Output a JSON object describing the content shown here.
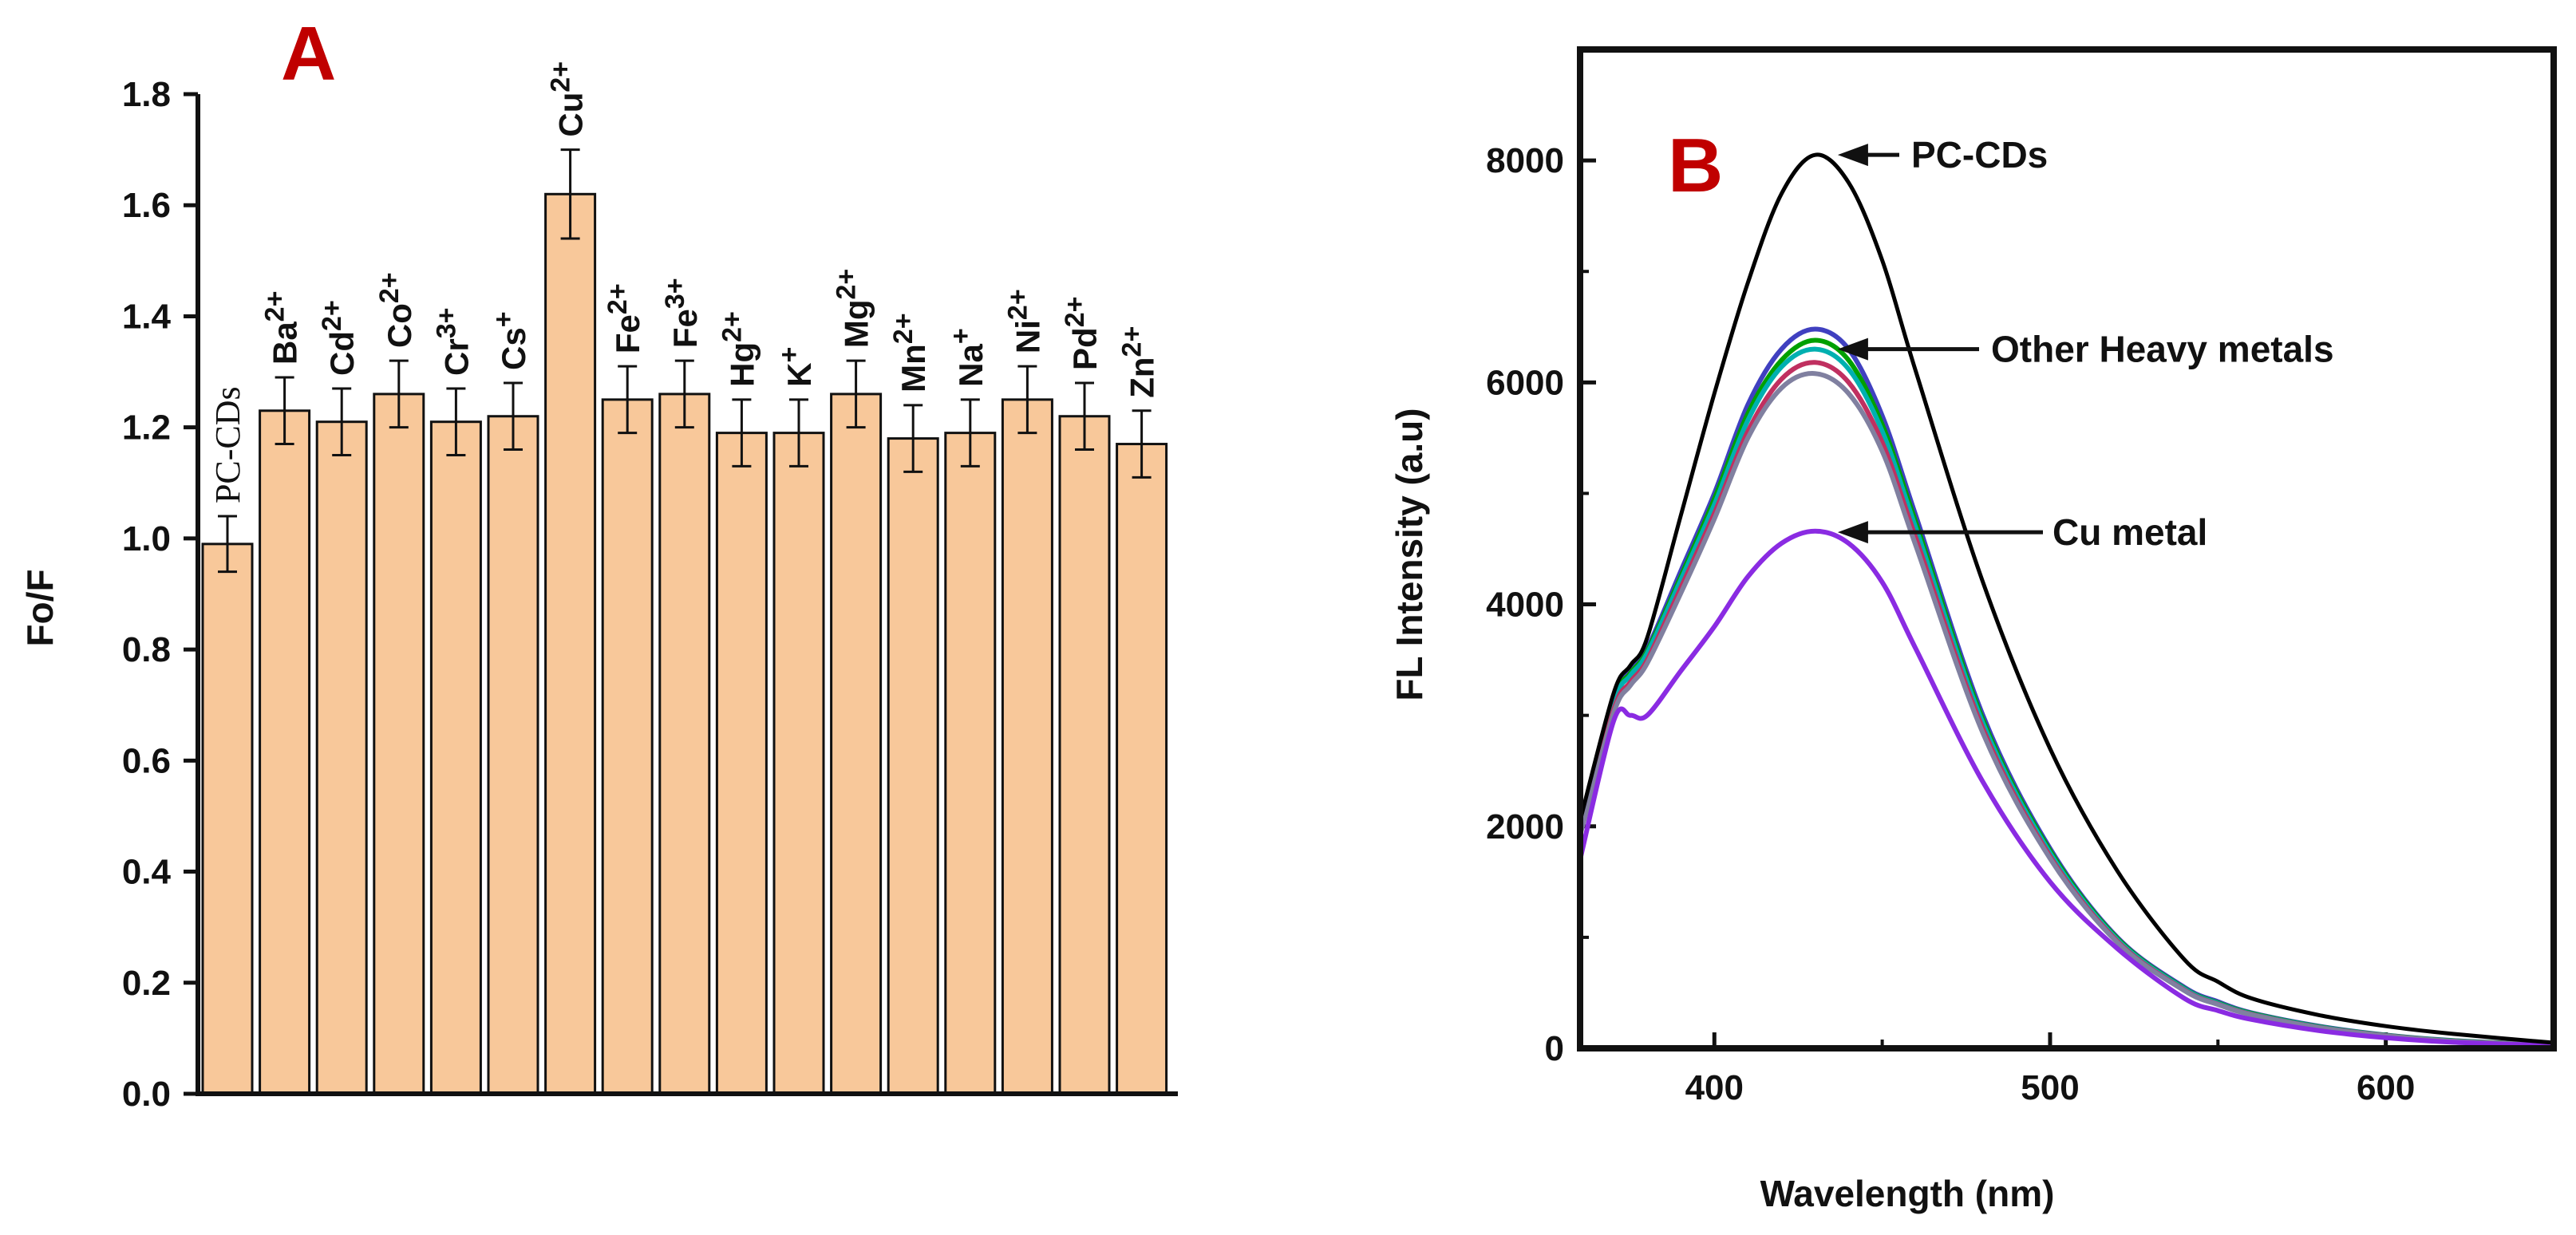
{
  "chart_data": [
    {
      "type": "bar",
      "panel_label": "A",
      "ylabel": "Fo/F",
      "xlabel": "",
      "ylim": [
        0,
        1.8
      ],
      "yticks": [
        "0.0",
        "0.2",
        "0.4",
        "0.6",
        "0.8",
        "1.0",
        "1.2",
        "1.4",
        "1.6",
        "1.8"
      ],
      "categories": [
        {
          "base": "PC-CDs",
          "sup": ""
        },
        {
          "base": "Ba",
          "sup": "2+"
        },
        {
          "base": "Cd",
          "sup": "2+"
        },
        {
          "base": "Co",
          "sup": "2+"
        },
        {
          "base": "Cr",
          "sup": "3+"
        },
        {
          "base": "Cs",
          "sup": "+"
        },
        {
          "base": "Cu",
          "sup": "2+"
        },
        {
          "base": "Fe",
          "sup": "2+"
        },
        {
          "base": "Fe",
          "sup": "3+"
        },
        {
          "base": "Hg",
          "sup": "2+"
        },
        {
          "base": "K",
          "sup": "+"
        },
        {
          "base": "Mg",
          "sup": "2+"
        },
        {
          "base": "Mn",
          "sup": "2+"
        },
        {
          "base": "Na",
          "sup": "+"
        },
        {
          "base": "Ni",
          "sup": "2+"
        },
        {
          "base": "Pd",
          "sup": "2+"
        },
        {
          "base": "Zn",
          "sup": "2+"
        }
      ],
      "values": [
        0.99,
        1.23,
        1.21,
        1.26,
        1.21,
        1.22,
        1.62,
        1.25,
        1.26,
        1.19,
        1.19,
        1.26,
        1.18,
        1.19,
        1.25,
        1.22,
        1.17
      ],
      "errors": [
        0.05,
        0.06,
        0.06,
        0.06,
        0.06,
        0.06,
        0.08,
        0.06,
        0.06,
        0.06,
        0.06,
        0.06,
        0.06,
        0.06,
        0.06,
        0.06,
        0.06
      ],
      "bar_color": "#f8c89a"
    },
    {
      "type": "line",
      "panel_label": "B",
      "xlabel": "Wavelength (nm)",
      "ylabel": "FL Intensity (a.u)",
      "xlim": [
        360,
        650
      ],
      "ylim": [
        0,
        9000
      ],
      "xticks": [
        400,
        500,
        600
      ],
      "yticks": [
        0,
        2000,
        4000,
        6000,
        8000
      ],
      "annotations": [
        {
          "text": "PC-CDs",
          "x": 432,
          "y": 8050
        },
        {
          "text": "Other Heavy metals",
          "x": 432,
          "y": 6300
        },
        {
          "text": "Cu metal",
          "x": 432,
          "y": 4650
        }
      ],
      "series": [
        {
          "name": "PC-CDs",
          "color": "#000000",
          "x": [
            360,
            370,
            375,
            380,
            390,
            400,
            410,
            420,
            430,
            440,
            450,
            460,
            480,
            500,
            520,
            540,
            550,
            560,
            580,
            600,
            620,
            650
          ],
          "y": [
            2050,
            3200,
            3450,
            3700,
            4800,
            5900,
            6900,
            7700,
            8050,
            7800,
            7100,
            6100,
            4200,
            2700,
            1600,
            800,
            600,
            450,
            300,
            200,
            130,
            50
          ]
        },
        {
          "name": "Other Heavy metals 1",
          "color": "#4040c0",
          "x": [
            360,
            370,
            375,
            380,
            390,
            400,
            410,
            420,
            430,
            440,
            450,
            460,
            480,
            500,
            520,
            540,
            550,
            560,
            580,
            600,
            620,
            650
          ],
          "y": [
            1950,
            3150,
            3400,
            3600,
            4300,
            5000,
            5800,
            6300,
            6480,
            6300,
            5700,
            4800,
            3000,
            1800,
            1000,
            550,
            420,
            320,
            200,
            120,
            70,
            30
          ]
        },
        {
          "name": "Other Heavy metals 2",
          "color": "#00a000",
          "x": [
            360,
            370,
            375,
            380,
            390,
            400,
            410,
            420,
            430,
            440,
            450,
            460,
            480,
            500,
            520,
            540,
            550,
            560,
            580,
            600,
            620,
            650
          ],
          "y": [
            1950,
            3130,
            3380,
            3580,
            4250,
            4950,
            5720,
            6200,
            6380,
            6200,
            5620,
            4740,
            2960,
            1780,
            990,
            540,
            410,
            315,
            195,
            118,
            68,
            30
          ]
        },
        {
          "name": "Other Heavy metals 3",
          "color": "#00b0b0",
          "x": [
            360,
            370,
            375,
            380,
            390,
            400,
            410,
            420,
            430,
            440,
            450,
            460,
            480,
            500,
            520,
            540,
            550,
            560,
            580,
            600,
            620,
            650
          ],
          "y": [
            1940,
            3110,
            3360,
            3560,
            4220,
            4900,
            5660,
            6140,
            6300,
            6120,
            5560,
            4690,
            2930,
            1760,
            980,
            535,
            405,
            310,
            192,
            116,
            66,
            30
          ]
        },
        {
          "name": "Other Heavy metals 4",
          "color": "#c03060",
          "x": [
            360,
            370,
            375,
            380,
            390,
            400,
            410,
            420,
            430,
            440,
            450,
            460,
            480,
            500,
            520,
            540,
            550,
            560,
            580,
            600,
            620,
            650
          ],
          "y": [
            1930,
            3050,
            3300,
            3500,
            4150,
            4820,
            5560,
            6030,
            6180,
            6000,
            5460,
            4600,
            2880,
            1730,
            965,
            525,
            398,
            305,
            188,
            114,
            64,
            30
          ]
        },
        {
          "name": "Other Heavy metals 5",
          "color": "#8080a0",
          "x": [
            360,
            370,
            375,
            380,
            390,
            400,
            410,
            420,
            430,
            440,
            450,
            460,
            480,
            500,
            520,
            540,
            550,
            560,
            580,
            600,
            620,
            650
          ],
          "y": [
            1920,
            3020,
            3270,
            3470,
            4100,
            4770,
            5500,
            5950,
            6080,
            5900,
            5380,
            4530,
            2840,
            1710,
            955,
            520,
            394,
            302,
            186,
            112,
            63,
            30
          ]
        },
        {
          "name": "Cu metal",
          "color": "#8a2be2",
          "x": [
            360,
            370,
            375,
            380,
            390,
            400,
            410,
            420,
            430,
            440,
            450,
            460,
            480,
            500,
            520,
            540,
            550,
            560,
            580,
            600,
            620,
            650
          ],
          "y": [
            1700,
            2950,
            3000,
            3000,
            3400,
            3800,
            4250,
            4550,
            4660,
            4550,
            4200,
            3600,
            2400,
            1500,
            900,
            450,
            340,
            260,
            160,
            95,
            55,
            25
          ]
        }
      ]
    }
  ]
}
